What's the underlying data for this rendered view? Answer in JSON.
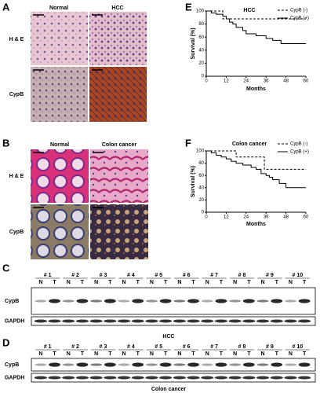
{
  "panel_labels": [
    "A",
    "B",
    "C",
    "D",
    "E",
    "F"
  ],
  "histology": [
    {
      "columns": [
        "Normal",
        "HCC"
      ],
      "rows": [
        "H & E",
        "CypB"
      ]
    },
    {
      "columns": [
        "Normal",
        "Colon cancer"
      ],
      "rows": [
        "H & E",
        "CypB"
      ]
    }
  ],
  "blots": [
    {
      "samples": [
        "# 1",
        "# 2",
        "# 3",
        "# 4",
        "# 5",
        "# 6",
        "# 7",
        "# 8",
        "# 9",
        "# 10"
      ],
      "lanes": [
        "N",
        "T"
      ],
      "proteins": [
        "CypB",
        "GAPDH"
      ],
      "caption": "HCC"
    },
    {
      "samples": [
        "# 1",
        "# 2",
        "# 3",
        "# 4",
        "# 5",
        "# 6",
        "# 7",
        "# 8",
        "# 9",
        "# 10"
      ],
      "lanes": [
        "N",
        "T"
      ],
      "proteins": [
        "CypB",
        "GAPDH"
      ],
      "caption": "Colon cancer"
    }
  ],
  "chart_data": [
    {
      "type": "line",
      "title": "HCC",
      "xlabel": "Months",
      "ylabel": "Survival (%)",
      "xlim": [
        0,
        60
      ],
      "xticks": [
        0,
        12,
        24,
        36,
        48,
        60
      ],
      "ylim": [
        0,
        100
      ],
      "yticks": [
        0,
        20,
        40,
        60,
        80,
        100
      ],
      "legend": "top-right",
      "series": [
        {
          "name": "CypB (-)",
          "color": "#000000",
          "dashed": true,
          "x": [
            0,
            10,
            10,
            60
          ],
          "values": [
            100,
            100,
            88,
            88
          ]
        },
        {
          "name": "CypB (+)",
          "color": "#000000",
          "dashed": false,
          "x": [
            0,
            3,
            3,
            6,
            6,
            10,
            10,
            12,
            12,
            14,
            14,
            16,
            16,
            18,
            18,
            22,
            22,
            24,
            24,
            30,
            30,
            36,
            36,
            40,
            40,
            45,
            45,
            60
          ],
          "values": [
            100,
            100,
            97,
            97,
            95,
            95,
            92,
            92,
            88,
            88,
            83,
            83,
            80,
            80,
            75,
            75,
            70,
            70,
            65,
            65,
            62,
            62,
            58,
            58,
            55,
            55,
            50,
            50
          ]
        }
      ]
    },
    {
      "type": "line",
      "title": "Colon cancer",
      "xlabel": "Months",
      "ylabel": "Survival (%)",
      "xlim": [
        0,
        60
      ],
      "xticks": [
        0,
        12,
        24,
        36,
        48,
        60
      ],
      "ylim": [
        0,
        100
      ],
      "yticks": [
        0,
        20,
        40,
        60,
        80,
        100
      ],
      "legend": "top-right",
      "series": [
        {
          "name": "CypB (-)",
          "color": "#000000",
          "dashed": true,
          "x": [
            0,
            18,
            18,
            35,
            35,
            45,
            45,
            60
          ],
          "values": [
            100,
            100,
            90,
            90,
            70,
            70,
            70,
            70
          ]
        },
        {
          "name": "CypB (+)",
          "color": "#000000",
          "dashed": false,
          "x": [
            0,
            3,
            3,
            6,
            6,
            9,
            9,
            12,
            12,
            15,
            15,
            18,
            18,
            22,
            22,
            27,
            27,
            30,
            30,
            33,
            33,
            36,
            36,
            38,
            38,
            40,
            40,
            44,
            44,
            48,
            48,
            60
          ],
          "values": [
            100,
            100,
            97,
            97,
            93,
            93,
            90,
            90,
            87,
            87,
            83,
            83,
            80,
            80,
            77,
            77,
            73,
            73,
            70,
            70,
            63,
            63,
            60,
            60,
            57,
            57,
            53,
            53,
            47,
            47,
            40,
            40
          ]
        }
      ]
    }
  ]
}
